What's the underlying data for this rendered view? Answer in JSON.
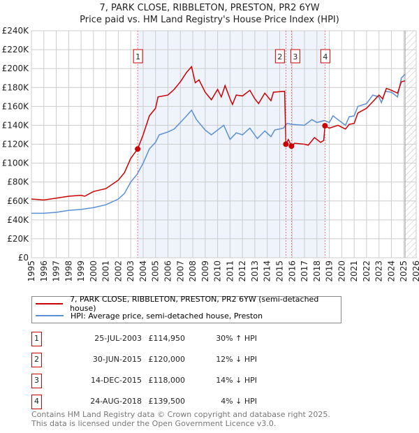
{
  "title": "7, PARK CLOSE, RIBBLETON, PRESTON, PR2 6YW",
  "subtitle": "Price paid vs. HM Land Registry's House Price Index (HPI)",
  "chart_data": {
    "type": "line",
    "xlim": [
      1995,
      2026
    ],
    "ylim": [
      0,
      240000
    ],
    "yticks": [
      0,
      20000,
      40000,
      60000,
      80000,
      100000,
      120000,
      140000,
      160000,
      180000,
      200000,
      220000,
      240000
    ],
    "ytick_labels": [
      "£0",
      "£20K",
      "£40K",
      "£60K",
      "£80K",
      "£100K",
      "£120K",
      "£140K",
      "£160K",
      "£180K",
      "£200K",
      "£220K",
      "£240K"
    ],
    "xticks": [
      "1995",
      "1996",
      "1997",
      "1998",
      "1999",
      "2000",
      "2001",
      "2002",
      "2003",
      "2004",
      "2005",
      "2006",
      "2007",
      "2008",
      "2009",
      "2010",
      "2011",
      "2012",
      "2013",
      "2014",
      "2015",
      "2016",
      "2017",
      "2018",
      "2019",
      "2020",
      "2021",
      "2022",
      "2023",
      "2024",
      "2025",
      "2026"
    ],
    "grid": true,
    "shaded_range": [
      2003.56,
      2018.65
    ],
    "hatched_from": 2025.1,
    "colors": {
      "property": "#cc0000",
      "hpi": "#5b8fd4",
      "shade": "#eef3fc"
    },
    "series": [
      {
        "name": "7, PARK CLOSE, RIBBLETON, PRESTON, PR2 6YW (semi-detached house)",
        "x": [
          1995,
          1996,
          1997,
          1998,
          1999,
          1999.3,
          2000,
          2001,
          2002,
          2002.5,
          2003,
          2003.56,
          2004,
          2004.5,
          2005,
          2005.2,
          2006,
          2006.5,
          2007,
          2007.5,
          2007.9,
          2008.2,
          2008.5,
          2009,
          2009.5,
          2010,
          2010.3,
          2010.6,
          2011,
          2011.2,
          2011.5,
          2012,
          2012.6,
          2013,
          2013.3,
          2013.8,
          2014.3,
          2014.5,
          2015.4,
          2015.5,
          2015.7,
          2015.95,
          2016.2,
          2017,
          2017.3,
          2017.8,
          2018.3,
          2018.55,
          2018.65,
          2019,
          2019.7,
          2020.3,
          2020.6,
          2021,
          2021.3,
          2022,
          2022.5,
          2023,
          2023.3,
          2023.6,
          2024,
          2024.5,
          2024.8,
          2025.1
        ],
        "y": [
          62000,
          61000,
          63000,
          65000,
          66000,
          65000,
          70000,
          73000,
          82000,
          90000,
          105000,
          114950,
          130000,
          150000,
          158000,
          170000,
          172000,
          178000,
          186000,
          196000,
          202000,
          185000,
          188000,
          175000,
          167000,
          178000,
          170000,
          182000,
          168000,
          162000,
          172000,
          171000,
          177000,
          168000,
          163000,
          174000,
          166000,
          175000,
          176000,
          120000,
          125000,
          118000,
          121000,
          120000,
          119000,
          127000,
          122000,
          124000,
          139500,
          137000,
          140000,
          136000,
          141000,
          142000,
          153000,
          158000,
          165000,
          172000,
          168000,
          179000,
          177000,
          174000,
          186000,
          187000
        ]
      },
      {
        "name": "HPI: Average price, semi-detached house, Preston",
        "x": [
          1995,
          1996,
          1997,
          1998,
          1999,
          2000,
          2001,
          2002,
          2002.5,
          2003,
          2003.5,
          2004,
          2004.5,
          2005,
          2005.3,
          2006,
          2006.5,
          2007,
          2007.5,
          2007.9,
          2008.3,
          2009,
          2009.5,
          2010,
          2010.5,
          2011,
          2011.5,
          2012,
          2012.6,
          2013.2,
          2013.8,
          2014.3,
          2014.6,
          2015.3,
          2015.6,
          2016,
          2017,
          2017.6,
          2018,
          2018.6,
          2019,
          2019.3,
          2019.7,
          2020.3,
          2020.6,
          2021,
          2021.3,
          2022,
          2022.5,
          2023,
          2023.2,
          2023.5,
          2024,
          2024.5,
          2024.8,
          2025.1
        ],
        "y": [
          47000,
          47000,
          48000,
          50000,
          51000,
          53000,
          56000,
          62000,
          68000,
          80000,
          88000,
          100000,
          115000,
          122000,
          130000,
          133000,
          136000,
          143000,
          150000,
          156000,
          146000,
          135000,
          130000,
          135000,
          140000,
          125000,
          132000,
          130000,
          137000,
          126000,
          134000,
          128000,
          135000,
          137000,
          142000,
          141000,
          140000,
          146000,
          143000,
          145000,
          143000,
          150000,
          146000,
          140000,
          149000,
          150000,
          160000,
          163000,
          172000,
          170000,
          164000,
          176000,
          175000,
          170000,
          190000,
          194000
        ]
      }
    ],
    "sales": [
      {
        "label": "1",
        "x": 2003.56,
        "y": 114950,
        "date": "25-JUL-2003",
        "price": "£114,950",
        "hpi": "30% ↑ HPI"
      },
      {
        "label": "2",
        "x": 2015.5,
        "y": 120000,
        "date": "30-JUN-2015",
        "price": "£120,000",
        "hpi": "12% ↓ HPI"
      },
      {
        "label": "3",
        "x": 2015.95,
        "y": 118000,
        "date": "14-DEC-2015",
        "price": "£118,000",
        "hpi": "14% ↓ HPI"
      },
      {
        "label": "4",
        "x": 2018.65,
        "y": 139500,
        "date": "24-AUG-2018",
        "price": "£139,500",
        "hpi": "4% ↓ HPI"
      }
    ]
  },
  "legend": {
    "property": "7, PARK CLOSE, RIBBLETON, PRESTON, PR2 6YW (semi-detached house)",
    "hpi": "HPI: Average price, semi-detached house, Preston"
  },
  "footer": {
    "line1": "Contains HM Land Registry data © Crown copyright and database right 2025.",
    "line2": "This data is licensed under the Open Government Licence v3.0."
  }
}
